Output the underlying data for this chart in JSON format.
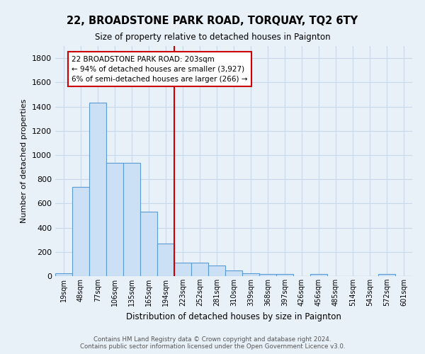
{
  "title": "22, BROADSTONE PARK ROAD, TORQUAY, TQ2 6TY",
  "subtitle": "Size of property relative to detached houses in Paignton",
  "xlabel": "Distribution of detached houses by size in Paignton",
  "ylabel": "Number of detached properties",
  "footer1": "Contains HM Land Registry data © Crown copyright and database right 2024.",
  "footer2": "Contains public sector information licensed under the Open Government Licence v3.0.",
  "bin_labels": [
    "19sqm",
    "48sqm",
    "77sqm",
    "106sqm",
    "135sqm",
    "165sqm",
    "194sqm",
    "223sqm",
    "252sqm",
    "281sqm",
    "310sqm",
    "339sqm",
    "368sqm",
    "397sqm",
    "426sqm",
    "456sqm",
    "485sqm",
    "514sqm",
    "543sqm",
    "572sqm",
    "601sqm"
  ],
  "bar_heights": [
    25,
    735,
    1430,
    935,
    935,
    530,
    270,
    110,
    110,
    90,
    45,
    25,
    15,
    15,
    0,
    15,
    0,
    0,
    0,
    15,
    0
  ],
  "bar_color": "#cce0f5",
  "bar_edge_color": "#5b9bd5",
  "vline_x": 6.5,
  "vline_color": "#cc0000",
  "annotation_box_text": "22 BROADSTONE PARK ROAD: 203sqm\n← 94% of detached houses are smaller (3,927)\n6% of semi-detached houses are larger (266) →",
  "annotation_box_color": "#cc0000",
  "annotation_box_bg": "#ffffff",
  "grid_color": "#c8d8e8",
  "bg_color": "#e8f0f8",
  "ylim": [
    0,
    1900
  ],
  "yticks": [
    0,
    200,
    400,
    600,
    800,
    1000,
    1200,
    1400,
    1600,
    1800
  ]
}
